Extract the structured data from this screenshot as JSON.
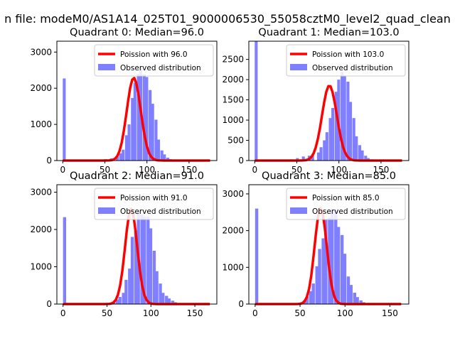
{
  "figure": {
    "suptitle": "n file: modeM0/AS1A14_025T01_9000006530_55058cztM0_level2_quad_clean"
  },
  "colors": {
    "fit": "#ff0000",
    "hist": "#7f7fff",
    "axis": "#000000",
    "legend_border": "#cccccc"
  },
  "chart_data": [
    {
      "type": "bar",
      "title": "Quadrant 0: Median=96.0",
      "xlim": [
        -7,
        183
      ],
      "ylim": [
        0,
        3300
      ],
      "xticks": [
        0,
        50,
        100,
        150
      ],
      "yticks": [
        0,
        1000,
        2000,
        3000
      ],
      "xlabel": "",
      "ylabel": "",
      "legend": {
        "position": "top-right",
        "fit_label": "Poission with 96.0",
        "hist_label": "Observed distribution"
      },
      "bin_width": 3.5,
      "bars": [
        [
          0,
          2270
        ],
        [
          35,
          10
        ],
        [
          42,
          20
        ],
        [
          49,
          40
        ],
        [
          56,
          60
        ],
        [
          63,
          110
        ],
        [
          67,
          200
        ],
        [
          70,
          300
        ],
        [
          74,
          700
        ],
        [
          77,
          1000
        ],
        [
          81,
          1730
        ],
        [
          84,
          2150
        ],
        [
          88,
          2400
        ],
        [
          91,
          2570
        ],
        [
          95,
          2380
        ],
        [
          98,
          2310
        ],
        [
          102,
          1950
        ],
        [
          105,
          1570
        ],
        [
          109,
          1130
        ],
        [
          112,
          580
        ],
        [
          116,
          280
        ],
        [
          119,
          170
        ],
        [
          123,
          80
        ],
        [
          126,
          40
        ],
        [
          130,
          20
        ],
        [
          133,
          10
        ]
      ],
      "fit": {
        "label": "Poission with 96.0",
        "mean": 96.0,
        "x_range": [
          0,
          175
        ],
        "x0": 0,
        "x_step": 2.5,
        "y": [
          0,
          0,
          0,
          0,
          0,
          0,
          0,
          0,
          0,
          0,
          0,
          0,
          0,
          0,
          0,
          0,
          0,
          0,
          0,
          0,
          0,
          1,
          3,
          9,
          24,
          60,
          135,
          272,
          495,
          813,
          1209,
          1630,
          2000,
          2238,
          2283,
          2126,
          1809,
          1406,
          999,
          650,
          386,
          210,
          106,
          49,
          21,
          8,
          3,
          1,
          0,
          0,
          0,
          0,
          0,
          0,
          0,
          0,
          0,
          0,
          0,
          0,
          0,
          0,
          0,
          0,
          0,
          0,
          0,
          0,
          0,
          0,
          0,
          0,
          0
        ]
      }
    },
    {
      "type": "bar",
      "title": "Quadrant 1: Median=103.0",
      "xlim": [
        -7,
        183
      ],
      "ylim": [
        0,
        2950
      ],
      "xticks": [
        0,
        50,
        100,
        150
      ],
      "yticks": [
        0,
        500,
        1000,
        1500,
        2000,
        2500
      ],
      "xlabel": "",
      "ylabel": "",
      "legend": {
        "position": "top-right",
        "fit_label": "Poission with 103.0",
        "hist_label": "Observed distribution"
      },
      "bin_width": 3.5,
      "bars": [
        [
          0,
          2950
        ],
        [
          42,
          30
        ],
        [
          49,
          60
        ],
        [
          56,
          100
        ],
        [
          63,
          120
        ],
        [
          67,
          150
        ],
        [
          74,
          200
        ],
        [
          77,
          330
        ],
        [
          81,
          500
        ],
        [
          84,
          700
        ],
        [
          88,
          1050
        ],
        [
          91,
          1300
        ],
        [
          95,
          1700
        ],
        [
          98,
          2000
        ],
        [
          102,
          2200
        ],
        [
          105,
          2100
        ],
        [
          109,
          1950
        ],
        [
          112,
          1450
        ],
        [
          116,
          1050
        ],
        [
          119,
          600
        ],
        [
          123,
          380
        ],
        [
          126,
          250
        ],
        [
          130,
          120
        ],
        [
          133,
          60
        ],
        [
          137,
          30
        ]
      ],
      "fit": {
        "label": "Poission with 103.0",
        "mean": 103.0,
        "x_range": [
          0,
          175
        ],
        "x0": 0,
        "x_step": 2.5,
        "y": [
          0,
          0,
          0,
          0,
          0,
          0,
          0,
          0,
          0,
          0,
          0,
          0,
          0,
          0,
          0,
          0,
          0,
          0,
          0,
          0,
          0,
          0,
          1,
          3,
          8,
          19,
          44,
          93,
          181,
          323,
          533,
          808,
          1126,
          1440,
          1695,
          1839,
          1835,
          1688,
          1432,
          1122,
          812,
          542,
          334,
          191,
          101,
          49,
          22,
          9,
          4,
          1,
          0,
          0,
          0,
          0,
          0,
          0,
          0,
          0,
          0,
          0,
          0,
          0,
          0,
          0,
          0,
          0,
          0,
          0,
          0,
          0,
          0,
          0,
          0
        ]
      }
    },
    {
      "type": "bar",
      "title": "Quadrant 2: Median=91.0",
      "xlim": [
        -7,
        175
      ],
      "ylim": [
        0,
        3200
      ],
      "xticks": [
        0,
        50,
        100,
        150
      ],
      "yticks": [
        0,
        1000,
        2000,
        3000
      ],
      "xlabel": "",
      "ylabel": "",
      "legend": {
        "position": "top-right",
        "fit_label": "Poission with 91.0",
        "hist_label": "Observed distribution"
      },
      "bin_width": 3.5,
      "bars": [
        [
          0,
          2330
        ],
        [
          35,
          10
        ],
        [
          42,
          20
        ],
        [
          49,
          30
        ],
        [
          56,
          60
        ],
        [
          60,
          120
        ],
        [
          63,
          190
        ],
        [
          67,
          300
        ],
        [
          70,
          650
        ],
        [
          74,
          950
        ],
        [
          77,
          1800
        ],
        [
          81,
          1960
        ],
        [
          84,
          2500
        ],
        [
          88,
          2400
        ],
        [
          91,
          2350
        ],
        [
          95,
          2350
        ],
        [
          98,
          2030
        ],
        [
          102,
          1430
        ],
        [
          105,
          880
        ],
        [
          109,
          550
        ],
        [
          112,
          300
        ],
        [
          116,
          220
        ],
        [
          119,
          150
        ],
        [
          123,
          90
        ],
        [
          126,
          50
        ],
        [
          130,
          20
        ]
      ],
      "fit": {
        "label": "Poission with 91.0",
        "mean": 91.0,
        "x_range": [
          0,
          167
        ],
        "x0": 0,
        "x_step": 2.5,
        "y": [
          0,
          0,
          0,
          0,
          0,
          0,
          0,
          0,
          0,
          0,
          0,
          0,
          0,
          0,
          0,
          0,
          0,
          0,
          0,
          0,
          1,
          5,
          16,
          44,
          111,
          250,
          503,
          893,
          1414,
          1965,
          2394,
          2557,
          2394,
          1965,
          1414,
          893,
          503,
          250,
          111,
          44,
          16,
          5,
          1,
          0,
          0,
          0,
          0,
          0,
          0,
          0,
          0,
          0,
          0,
          0,
          0,
          0,
          0,
          0,
          0,
          0,
          0,
          0,
          0,
          0,
          0,
          0,
          0,
          0
        ]
      }
    },
    {
      "type": "bar",
      "title": "Quadrant 3: Median=85.0",
      "xlim": [
        -7,
        171
      ],
      "ylim": [
        0,
        3250
      ],
      "xticks": [
        0,
        50,
        100,
        150
      ],
      "yticks": [
        0,
        1000,
        2000,
        3000
      ],
      "xlabel": "",
      "ylabel": "",
      "legend": {
        "position": "top-right",
        "fit_label": "Poission with 85.0",
        "hist_label": "Observed distribution"
      },
      "bin_width": 3.5,
      "bars": [
        [
          0,
          2600
        ],
        [
          35,
          10
        ],
        [
          42,
          20
        ],
        [
          49,
          40
        ],
        [
          53,
          100
        ],
        [
          56,
          200
        ],
        [
          60,
          350
        ],
        [
          63,
          560
        ],
        [
          67,
          1030
        ],
        [
          70,
          1500
        ],
        [
          74,
          1790
        ],
        [
          77,
          2300
        ],
        [
          81,
          2350
        ],
        [
          84,
          2550
        ],
        [
          88,
          2550
        ],
        [
          91,
          2100
        ],
        [
          95,
          1880
        ],
        [
          98,
          1370
        ],
        [
          102,
          750
        ],
        [
          105,
          520
        ],
        [
          109,
          310
        ],
        [
          112,
          190
        ],
        [
          116,
          100
        ],
        [
          119,
          50
        ],
        [
          123,
          20
        ],
        [
          126,
          10
        ]
      ],
      "fit": {
        "label": "Poission with 85.0",
        "mean": 85.0,
        "x_range": [
          0,
          163
        ],
        "x0": 0,
        "x_step": 2.5,
        "y": [
          0,
          0,
          0,
          0,
          0,
          0,
          0,
          0,
          0,
          0,
          0,
          0,
          0,
          0,
          0,
          0,
          0,
          0,
          0,
          2,
          8,
          26,
          75,
          188,
          411,
          784,
          1303,
          1887,
          2380,
          2614,
          2500,
          2083,
          1511,
          955,
          525,
          251,
          105,
          38,
          12,
          3,
          1,
          0,
          0,
          0,
          0,
          0,
          0,
          0,
          0,
          0,
          0,
          0,
          0,
          0,
          0,
          0,
          0,
          0,
          0,
          0,
          0,
          0,
          0,
          0,
          0,
          0
        ]
      }
    }
  ]
}
